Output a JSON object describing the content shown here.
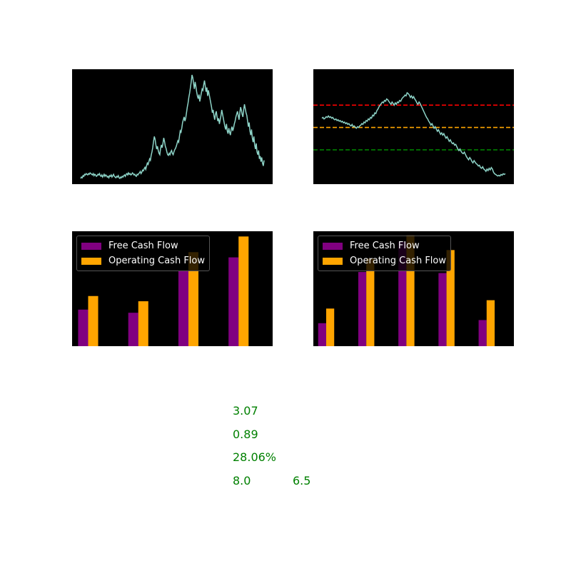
{
  "colors": {
    "panel_bg": "#000000",
    "price_line": "#8dd3c7",
    "free_cash_flow": "#800080",
    "operating_cash_flow": "#ffa500",
    "resistance": "#ff0000",
    "mid": "#ffa500",
    "support": "#008000",
    "metric_text": "#008000"
  },
  "chart_data": [
    {
      "type": "line",
      "series": [
        {
          "values": [
            2,
            4,
            3,
            6,
            5,
            8,
            7,
            9,
            8,
            7,
            9,
            8,
            10,
            9,
            8,
            7,
            9,
            6,
            8,
            7,
            5,
            6,
            8,
            7,
            9,
            6,
            5,
            7,
            4,
            6,
            8,
            5,
            7,
            6,
            4,
            5,
            3,
            6,
            5,
            7,
            4,
            6,
            8,
            5,
            4,
            3,
            5,
            4,
            6,
            3,
            2,
            4,
            3,
            5,
            4,
            6,
            7,
            5,
            8,
            9,
            7,
            10,
            8,
            9,
            7,
            8,
            10,
            9,
            7,
            8,
            6,
            5,
            8,
            7,
            9,
            10,
            12,
            9,
            11,
            14,
            13,
            16,
            18,
            15,
            20,
            24,
            22,
            26,
            30,
            28,
            35,
            40,
            46,
            55,
            62,
            58,
            50,
            44,
            48,
            42,
            38,
            36,
            45,
            50,
            46,
            52,
            60,
            55,
            48,
            45,
            40,
            36,
            35,
            38,
            36,
            40,
            42,
            38,
            36,
            40,
            43,
            45,
            48,
            52,
            56,
            54,
            62,
            70,
            68,
            74,
            82,
            86,
            90,
            84,
            88,
            96,
            104,
            110,
            118,
            124,
            132,
            140,
            150,
            146,
            138,
            130,
            140,
            134,
            126,
            120,
            116,
            122,
            112,
            118,
            124,
            130,
            128,
            136,
            142,
            134,
            126,
            132,
            120,
            128,
            122,
            116,
            110,
            104,
            96,
            100,
            92,
            86,
            94,
            98,
            90,
            84,
            88,
            80,
            86,
            92,
            100,
            94,
            88,
            82,
            76,
            72,
            80,
            70,
            66,
            74,
            68,
            64,
            72,
            76,
            70,
            74,
            80,
            84,
            90,
            94,
            98,
            92,
            86,
            96,
            104,
            100,
            94,
            90,
            100,
            108,
            102,
            96,
            92,
            84,
            76,
            82,
            70,
            64,
            72,
            60,
            54,
            62,
            50,
            44,
            52,
            40,
            36,
            42,
            30,
            34,
            26,
            32,
            24,
            20,
            28
          ]
        }
      ],
      "ylim": [
        0,
        152
      ]
    },
    {
      "type": "line",
      "series": [
        {
          "values": [
            100,
            101,
            99,
            100,
            102,
            101,
            103,
            101,
            102,
            100,
            101,
            99,
            98,
            99,
            97,
            98,
            96,
            97,
            95,
            96,
            94,
            95,
            93,
            94,
            92,
            93,
            91,
            90,
            92,
            89,
            90,
            88,
            87,
            89,
            88,
            90,
            91,
            93,
            92,
            95,
            94,
            97,
            96,
            99,
            98,
            101,
            100,
            104,
            103,
            107,
            106,
            110,
            112,
            115,
            117,
            119,
            121,
            120,
            123,
            122,
            125,
            124,
            122,
            120,
            118,
            121,
            119,
            117,
            120,
            118,
            121,
            120,
            123,
            122,
            125,
            127,
            128,
            130,
            129,
            133,
            132,
            130,
            127,
            129,
            126,
            128,
            125,
            123,
            120,
            118,
            121,
            119,
            116,
            113,
            110,
            107,
            104,
            101,
            99,
            96,
            94,
            91,
            93,
            90,
            87,
            89,
            86,
            83,
            85,
            82,
            79,
            81,
            78,
            80,
            77,
            74,
            76,
            73,
            70,
            72,
            69,
            67,
            68,
            65,
            66,
            63,
            60,
            58,
            60,
            57,
            55,
            54,
            56,
            53,
            50,
            48,
            46,
            49,
            47,
            44,
            42,
            45,
            43,
            41,
            40,
            38,
            39,
            36,
            35,
            37,
            34,
            33,
            31,
            34,
            32,
            35,
            33,
            36,
            34,
            30,
            28,
            27,
            26,
            25,
            26,
            25,
            27,
            26,
            28,
            27,
            28
          ]
        }
      ],
      "hlines": [
        {
          "level": 117,
          "color": "#ff0000",
          "style": "dashed"
        },
        {
          "level": 88,
          "color": "#ffa500",
          "style": "dashed"
        },
        {
          "level": 59,
          "color": "#008000",
          "style": "dashed"
        }
      ],
      "ylim": [
        20,
        158
      ]
    },
    {
      "type": "bar",
      "categories": [
        "",
        "",
        "",
        ""
      ],
      "series": [
        {
          "name": "Free Cash Flow",
          "values": [
            35,
            32,
            72,
            85
          ]
        },
        {
          "name": "Operating Cash Flow",
          "values": [
            48,
            43,
            90,
            105
          ]
        }
      ],
      "ylim": [
        0,
        110
      ],
      "legend": "upper left"
    },
    {
      "type": "bar",
      "categories": [
        "",
        "",
        "",
        "",
        ""
      ],
      "series": [
        {
          "name": "Free Cash Flow",
          "values": [
            22,
            71,
            100,
            70,
            25
          ]
        },
        {
          "name": "Operating Cash Flow",
          "values": [
            36,
            84,
            106,
            92,
            44
          ]
        }
      ],
      "ylim": [
        0,
        110
      ],
      "legend": "upper left"
    }
  ],
  "legend_labels": {
    "fcf": "Free Cash Flow",
    "ocf": "Operating Cash Flow"
  },
  "metrics": {
    "m1": "3.07",
    "m2": "0.89",
    "m3": "28.06%",
    "m4a": "8.0",
    "m4b": "6.5"
  }
}
